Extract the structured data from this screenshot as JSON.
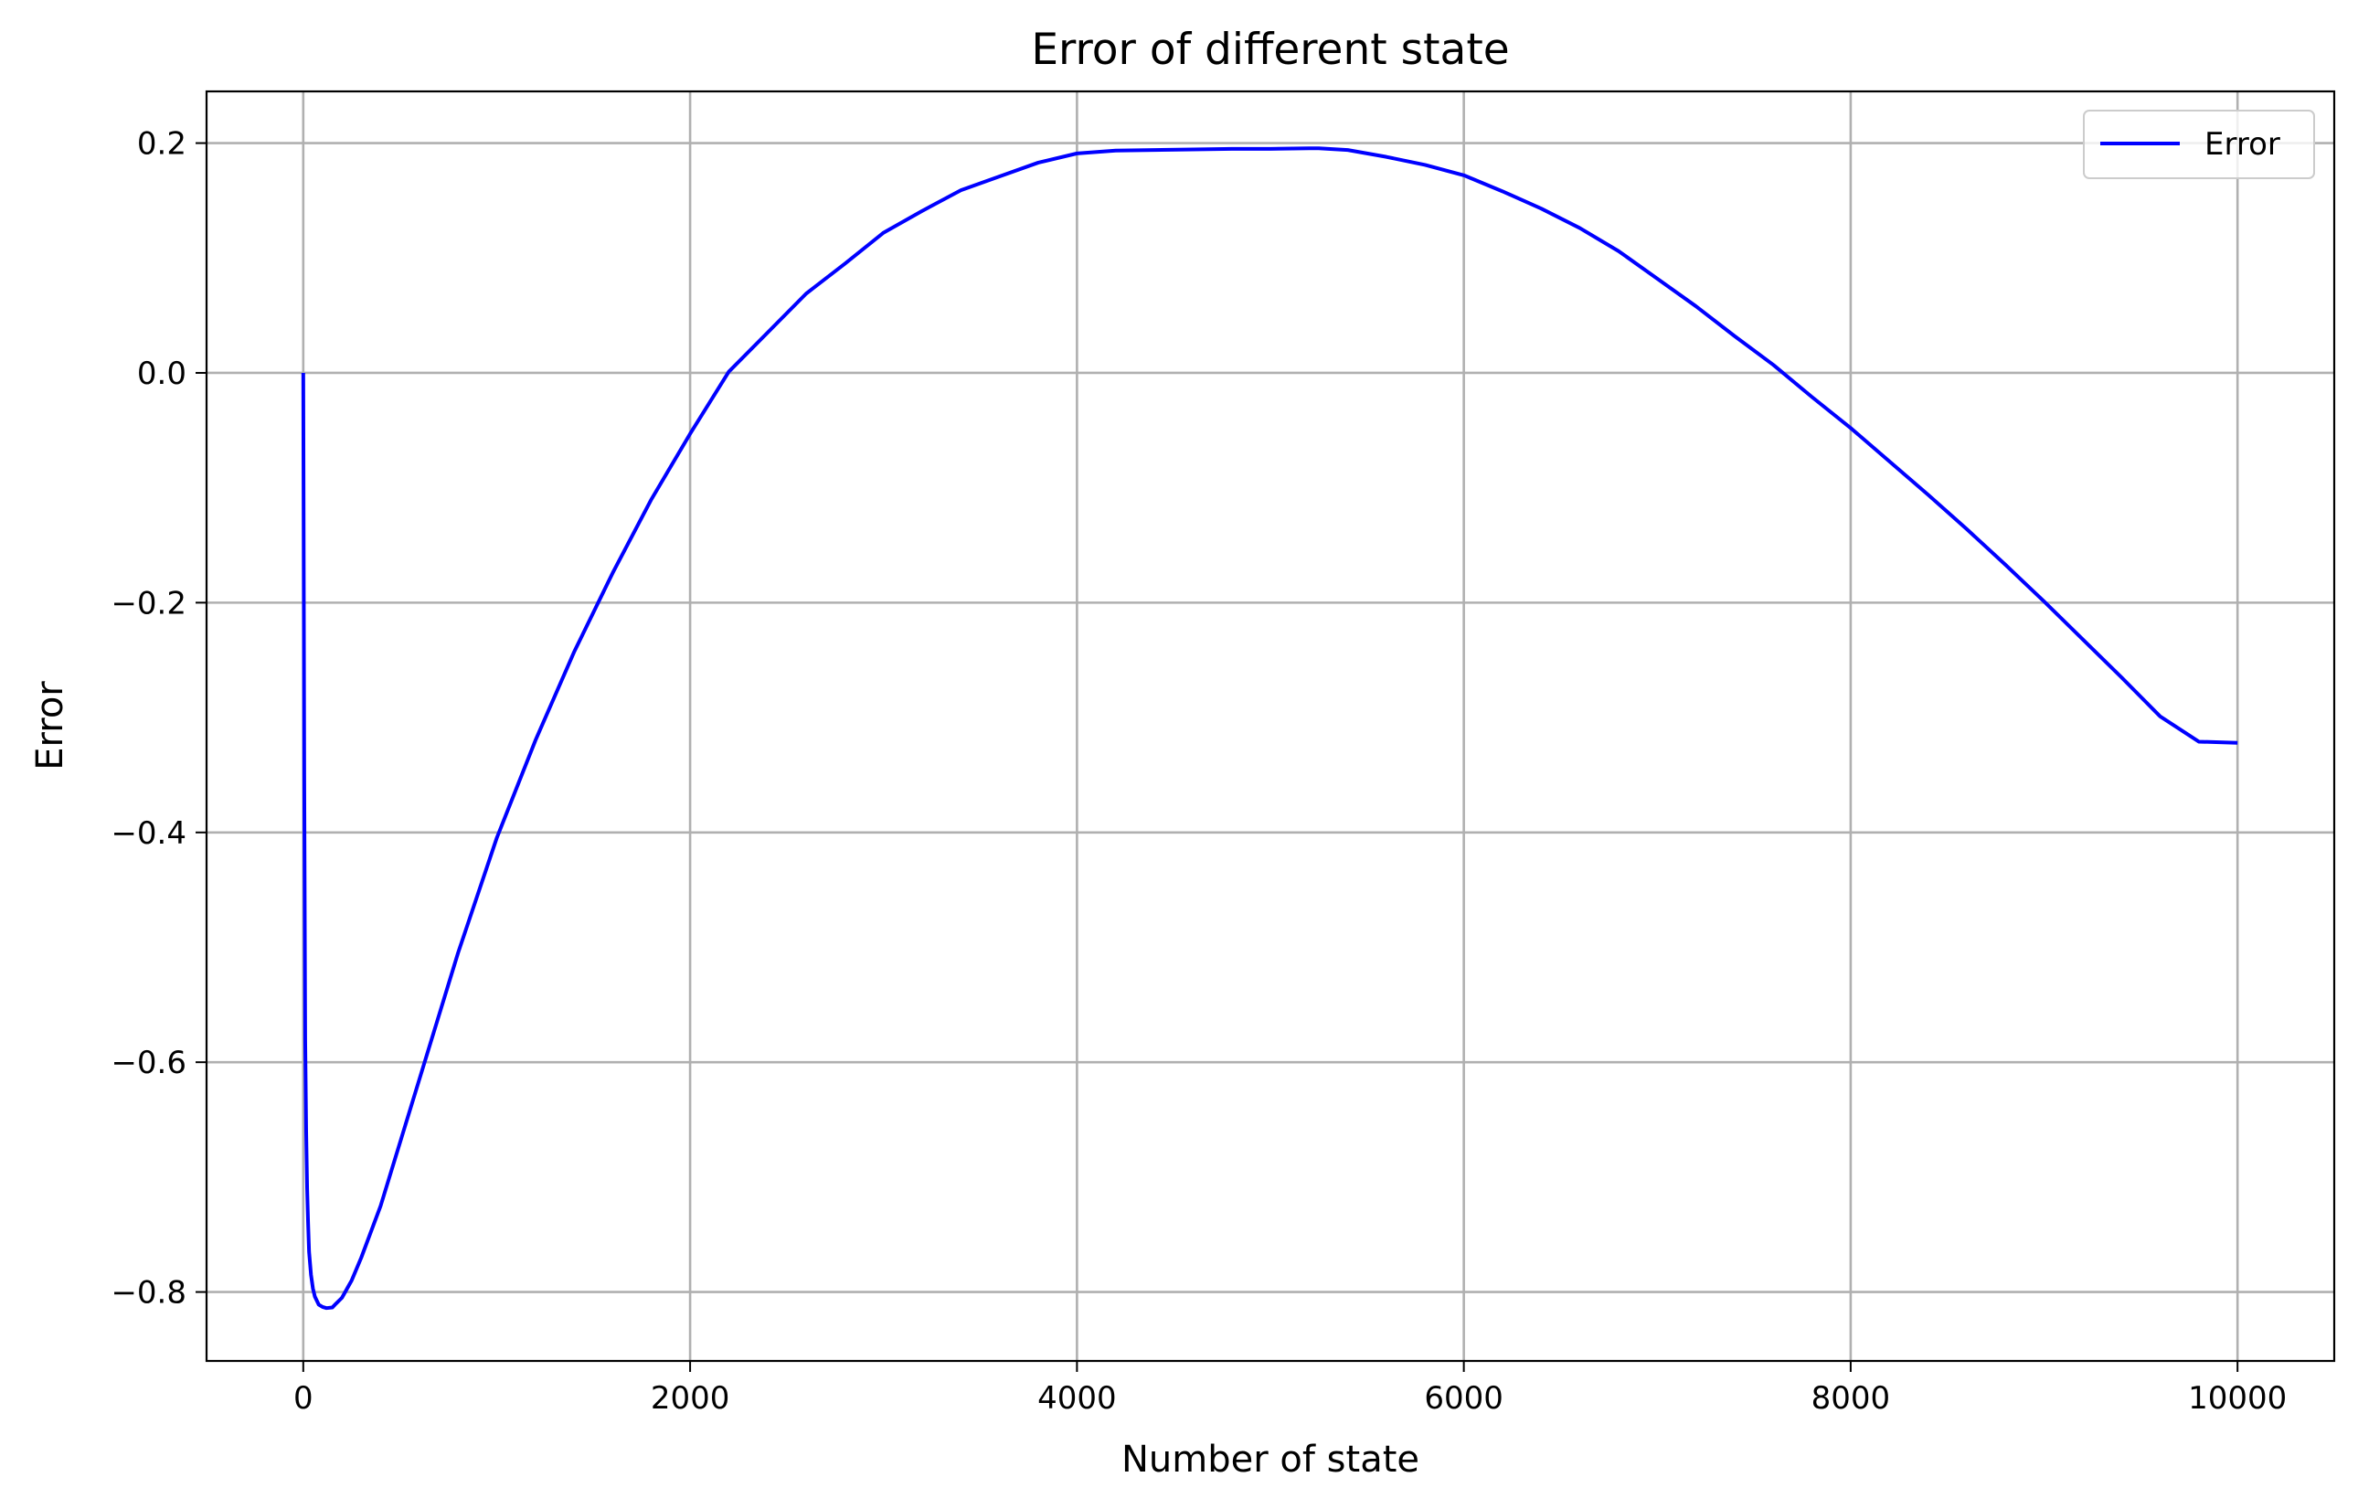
{
  "chart_data": {
    "type": "line",
    "title": "Error of different state",
    "xlabel": "Number of state",
    "ylabel": "Error",
    "xlim": [
      -500,
      10500
    ],
    "ylim": [
      -0.86,
      0.245
    ],
    "grid": true,
    "legend_position": "top-right",
    "x_ticks": [
      0,
      2000,
      4000,
      6000,
      8000,
      10000
    ],
    "x_tick_labels": [
      "0",
      "2000",
      "4000",
      "6000",
      "8000",
      "10000"
    ],
    "y_ticks": [
      0.2,
      0.0,
      -0.2,
      -0.4,
      -0.6,
      -0.8
    ],
    "y_tick_labels": [
      "0.2",
      "0.0",
      "−0.2",
      "−0.4",
      "−0.6",
      "−0.8"
    ],
    "series": [
      {
        "name": "Error",
        "color": "#0000ff",
        "x": [
          0,
          5,
          10,
          15,
          20,
          25,
          30,
          40,
          50,
          60,
          80,
          100,
          120,
          150,
          170,
          200,
          250,
          300,
          400,
          500,
          600,
          700,
          800,
          1000,
          1200,
          1400,
          1600,
          1800,
          2000,
          2200,
          2400,
          2600,
          2800,
          3000,
          3200,
          3400,
          3600,
          3800,
          4000,
          4200,
          4400,
          4600,
          4800,
          5000,
          5200,
          5250,
          5400,
          5600,
          5800,
          6000,
          6200,
          6400,
          6600,
          6800,
          7000,
          7200,
          7400,
          7600,
          7800,
          8000,
          8200,
          8400,
          8600,
          8800,
          9000,
          9200,
          9400,
          9600,
          9800,
          10000
        ],
        "y": [
          0.0,
          -0.35,
          -0.58,
          -0.66,
          -0.71,
          -0.74,
          -0.765,
          -0.785,
          -0.797,
          -0.804,
          -0.811,
          -0.813,
          -0.814,
          -0.8135,
          -0.81,
          -0.805,
          -0.79,
          -0.77,
          -0.725,
          -0.67,
          -0.615,
          -0.56,
          -0.505,
          -0.405,
          -0.32,
          -0.243,
          -0.174,
          -0.11,
          -0.053,
          0.001,
          0.035,
          0.069,
          0.095,
          0.122,
          0.141,
          0.159,
          0.171,
          0.183,
          0.191,
          0.1935,
          0.194,
          0.1945,
          0.195,
          0.195,
          0.1955,
          0.1955,
          0.194,
          0.188,
          0.181,
          0.172,
          0.158,
          0.143,
          0.126,
          0.106,
          0.082,
          0.058,
          0.032,
          0.007,
          -0.021,
          -0.048,
          -0.077,
          -0.106,
          -0.136,
          -0.167,
          -0.199,
          -0.232,
          -0.265,
          -0.299,
          -0.321,
          -0.322
        ]
      }
    ]
  }
}
